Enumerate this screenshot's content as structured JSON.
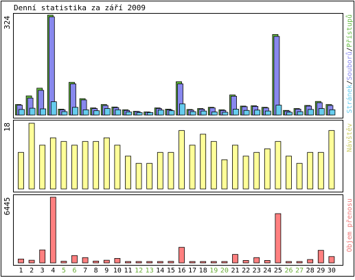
{
  "title": "Denní statistika za září 2009",
  "colors": {
    "access": "#66bb44",
    "files": "#8888ee",
    "pages": "#66ccee",
    "visits": "#ffff99",
    "visits_label": "#cccc66",
    "volume": "#ff8080",
    "volume_label": "#ee7777",
    "weekday_text": "#000000",
    "weekend_text": "#66aa33"
  },
  "weekend_days": [
    5,
    6,
    12,
    13,
    19,
    20,
    26,
    27
  ],
  "chart_data": [
    {
      "type": "bar",
      "panel": "hits",
      "ymax_label": "324",
      "ylim": [
        0,
        324
      ],
      "legend": {
        "access": "Přístupů",
        "files": "Souborů",
        "pages": "Stránek",
        "sep1": "/",
        "sep2": "/"
      },
      "categories": [
        "1",
        "2",
        "3",
        "4",
        "5",
        "6",
        "7",
        "8",
        "9",
        "10",
        "11",
        "12",
        "13",
        "14",
        "15",
        "16",
        "17",
        "18",
        "19",
        "20",
        "21",
        "22",
        "23",
        "24",
        "25",
        "26",
        "27",
        "28",
        "29",
        "30"
      ],
      "series": [
        {
          "name": "Přístupů",
          "key": "access",
          "values": [
            34,
            62,
            87,
            324,
            19,
            106,
            53,
            23,
            34,
            26,
            17,
            12,
            10,
            23,
            19,
            108,
            18,
            21,
            25,
            17,
            65,
            29,
            30,
            25,
            261,
            15,
            21,
            31,
            44,
            34
          ]
        },
        {
          "name": "Souborů",
          "key": "files",
          "values": [
            32,
            55,
            80,
            318,
            17,
            101,
            49,
            21,
            31,
            24,
            15,
            11,
            9,
            21,
            17,
            101,
            16,
            19,
            23,
            15,
            61,
            27,
            28,
            23,
            255,
            13,
            19,
            29,
            40,
            31
          ]
        },
        {
          "name": "Stránek",
          "key": "pages",
          "values": [
            18,
            22,
            20,
            43,
            11,
            25,
            17,
            14,
            21,
            17,
            10,
            8,
            8,
            16,
            14,
            36,
            11,
            13,
            10,
            9,
            19,
            15,
            16,
            13,
            32,
            9,
            11,
            18,
            21,
            17
          ]
        }
      ]
    },
    {
      "type": "bar",
      "panel": "visits",
      "ymax_label": "18",
      "ylim": [
        0,
        18
      ],
      "legend": {
        "visits": "Návštěv"
      },
      "categories": [
        "1",
        "2",
        "3",
        "4",
        "5",
        "6",
        "7",
        "8",
        "9",
        "10",
        "11",
        "12",
        "13",
        "14",
        "15",
        "16",
        "17",
        "18",
        "19",
        "20",
        "21",
        "22",
        "23",
        "24",
        "25",
        "26",
        "27",
        "28",
        "29",
        "30"
      ],
      "series": [
        {
          "name": "Návštěv",
          "key": "visits",
          "values": [
            10,
            18,
            12,
            14,
            13,
            12,
            13,
            13,
            14,
            12,
            9,
            7,
            7,
            10,
            10,
            16,
            12,
            15,
            13,
            8,
            12,
            9,
            10,
            11,
            13,
            9,
            7,
            10,
            10,
            16
          ]
        }
      ]
    },
    {
      "type": "bar",
      "panel": "volume",
      "ymax_label": "6445",
      "ylim": [
        0,
        6445
      ],
      "legend": {
        "volume": "Objem přenosu"
      },
      "categories": [
        "1",
        "2",
        "3",
        "4",
        "5",
        "6",
        "7",
        "8",
        "9",
        "10",
        "11",
        "12",
        "13",
        "14",
        "15",
        "16",
        "17",
        "18",
        "19",
        "20",
        "21",
        "22",
        "23",
        "24",
        "25",
        "26",
        "27",
        "28",
        "29",
        "30"
      ],
      "series": [
        {
          "name": "Objem přenosu",
          "key": "volume",
          "values": [
            380,
            260,
            1270,
            6445,
            160,
            720,
            520,
            180,
            260,
            440,
            100,
            90,
            60,
            130,
            150,
            1530,
            80,
            100,
            90,
            80,
            830,
            240,
            520,
            240,
            4830,
            90,
            110,
            330,
            1230,
            620
          ]
        }
      ]
    }
  ]
}
